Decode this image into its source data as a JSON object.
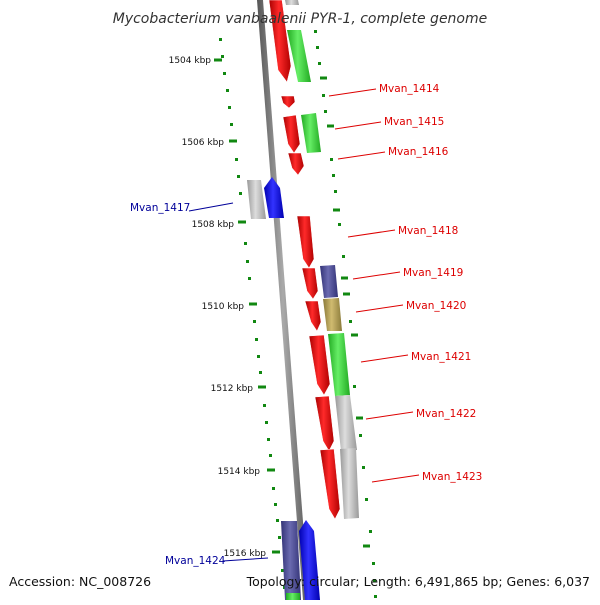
{
  "title": "Mycobacterium vanbaalenii PYR-1, complete genome",
  "accession_text": "Accession: NC_008726",
  "topology_text": "Topology: circular; Length: 6,491,865 bp; Genes: 6,037",
  "kbp_labels": [
    "1504 kbp",
    "1506 kbp",
    "1508 kbp",
    "1510 kbp",
    "1512 kbp",
    "1514 kbp",
    "1516 kbp"
  ],
  "genes": [
    {
      "label": "Mvan_1414",
      "color": "#e00000",
      "strand": "forward"
    },
    {
      "label": "Mvan_1415",
      "color": "#e00000",
      "strand": "forward"
    },
    {
      "label": "Mvan_1416",
      "color": "#e00000",
      "strand": "forward"
    },
    {
      "label": "Mvan_1417",
      "color": "#000099",
      "strand": "reverse"
    },
    {
      "label": "Mvan_1418",
      "color": "#e00000",
      "strand": "forward"
    },
    {
      "label": "Mvan_1419",
      "color": "#e00000",
      "strand": "forward"
    },
    {
      "label": "Mvan_1420",
      "color": "#e00000",
      "strand": "forward"
    },
    {
      "label": "Mvan_1421",
      "color": "#e00000",
      "strand": "forward"
    },
    {
      "label": "Mvan_1422",
      "color": "#e00000",
      "strand": "forward"
    },
    {
      "label": "Mvan_1423",
      "color": "#e00000",
      "strand": "forward"
    },
    {
      "label": "Mvan_1424",
      "color": "#000099",
      "strand": "reverse"
    }
  ],
  "colors": {
    "cds_red": "#ff0000",
    "cds_blue": "#0000ff",
    "cog_green": "#33cc33",
    "cog_gray": "#bbbbbb",
    "cog_slate": "#555599",
    "cog_olive": "#b8a050",
    "backbone": "#888888",
    "tick_green": "#118811"
  }
}
